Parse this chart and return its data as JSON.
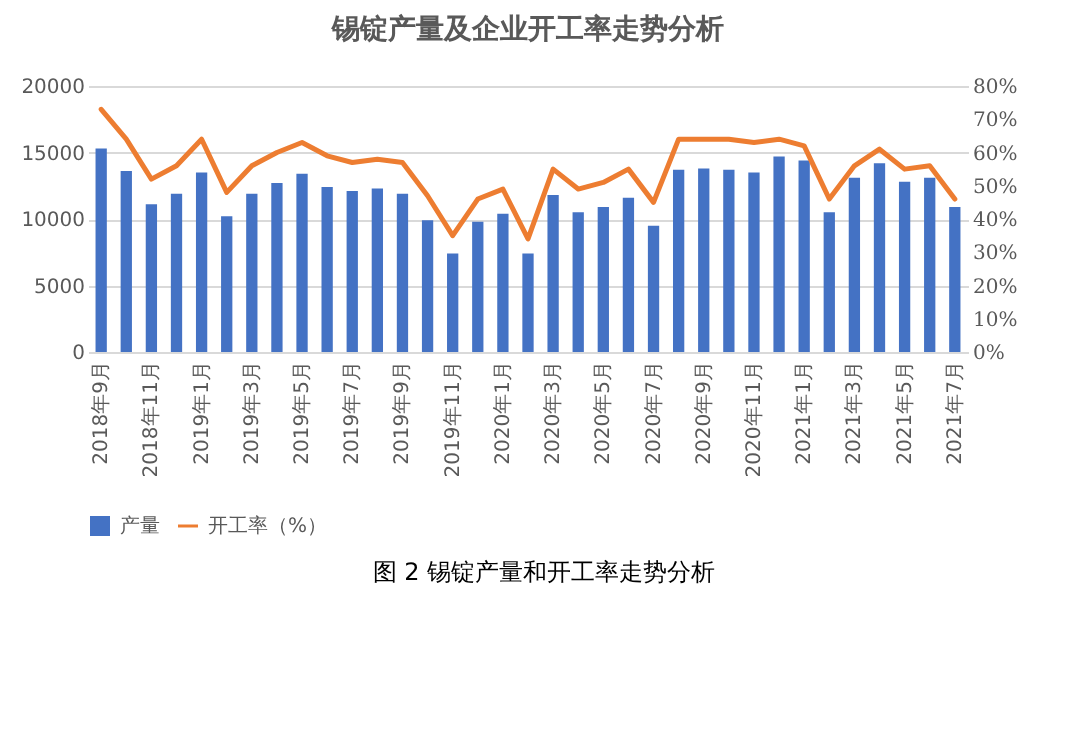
{
  "chart_data": {
    "type": "bar",
    "title": "锡锭产量及企业开工率走势分析",
    "categories": [
      "2018年9月",
      null,
      "2018年11月",
      null,
      "2019年1月",
      null,
      "2019年3月",
      null,
      "2019年5月",
      null,
      "2019年7月",
      null,
      "2019年9月",
      null,
      "2019年11月",
      null,
      "2020年1月",
      null,
      "2020年3月",
      null,
      "2020年5月",
      null,
      "2020年7月",
      null,
      "2020年9月",
      null,
      "2020年11月",
      null,
      "2021年1月",
      null,
      "2021年3月",
      null,
      "2021年5月",
      null,
      "2021年7月"
    ],
    "series": [
      {
        "name": "产量",
        "color": "#4472c4",
        "values": [
          15300,
          13600,
          11100,
          11900,
          13500,
          10200,
          11900,
          12700,
          13400,
          12400,
          12100,
          12300,
          11900,
          9900,
          7400,
          9800,
          10400,
          7400,
          11800,
          10500,
          10900,
          11600,
          9500,
          13700,
          13800,
          13700,
          13500,
          14700,
          14400,
          10500,
          13100,
          14200,
          12800,
          13100,
          10900
        ]
      },
      {
        "name": "开工率（%）",
        "type": "line",
        "axis": "y2",
        "color": "#ed7d31",
        "values": [
          73,
          64,
          52,
          56,
          64,
          48,
          56,
          60,
          63,
          59,
          57,
          58,
          57,
          47,
          35,
          46,
          49,
          34,
          55,
          49,
          51,
          55,
          45,
          64,
          64,
          64,
          63,
          64,
          62,
          46,
          56,
          61,
          55,
          56,
          46
        ]
      }
    ],
    "ylim": [
      0,
      20000
    ],
    "yticks": [
      0,
      5000,
      10000,
      15000,
      20000
    ],
    "y2lim": [
      0,
      80
    ],
    "y2ticks": [
      {
        "value": 0,
        "label": "0%"
      },
      {
        "value": 10,
        "label": "10%"
      },
      {
        "value": 20,
        "label": "20%"
      },
      {
        "value": 30,
        "label": "30%"
      },
      {
        "value": 40,
        "label": "40%"
      },
      {
        "value": 50,
        "label": "50%"
      },
      {
        "value": 60,
        "label": "60%"
      },
      {
        "value": 70,
        "label": "70%"
      },
      {
        "value": 80,
        "label": "80%"
      }
    ],
    "grid": "y",
    "legend": "bottom",
    "marker": "none",
    "line_style": "solid",
    "annotations": [
      "图 2 锡锭产量和开工率走势分析"
    ]
  }
}
